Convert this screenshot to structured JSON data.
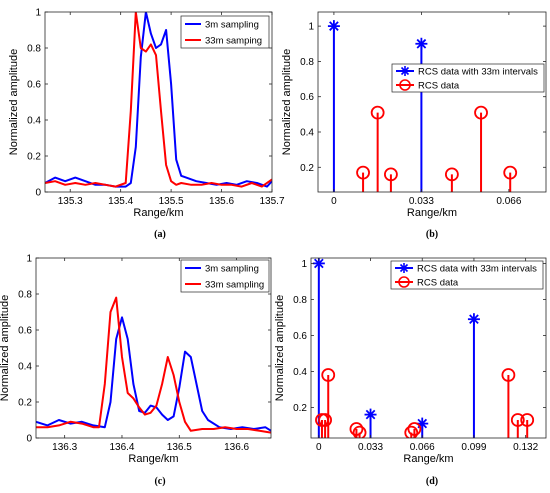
{
  "chart_data": [
    {
      "id": "a",
      "type": "line",
      "caption": "(a)",
      "xlabel": "Range/km",
      "ylabel": "Normalized amplitude",
      "xlim": [
        135.25,
        135.7
      ],
      "ylim": [
        0,
        1
      ],
      "xticks": [
        135.3,
        135.4,
        135.5,
        135.6,
        135.7
      ],
      "xtick_labels": [
        "135.3",
        "135.4",
        "135.5",
        "135.6",
        "135.7"
      ],
      "yticks": [
        0,
        0.2,
        0.4,
        0.6,
        0.8,
        1
      ],
      "ytick_labels": [
        "0",
        "0.2",
        "0.4",
        "0.6",
        "0.8",
        "1"
      ],
      "legend_position": "top-right",
      "series": [
        {
          "name": "3m sampling",
          "color": "#0000ff",
          "x": [
            135.25,
            135.27,
            135.29,
            135.31,
            135.33,
            135.35,
            135.37,
            135.39,
            135.41,
            135.42,
            135.43,
            135.44,
            135.45,
            135.46,
            135.47,
            135.48,
            135.49,
            135.5,
            135.51,
            135.52,
            135.53,
            135.55,
            135.57,
            135.59,
            135.61,
            135.63,
            135.65,
            135.67,
            135.69,
            135.7
          ],
          "y": [
            0.05,
            0.08,
            0.06,
            0.08,
            0.06,
            0.04,
            0.04,
            0.03,
            0.03,
            0.05,
            0.25,
            0.75,
            1.0,
            0.88,
            0.8,
            0.82,
            0.9,
            0.6,
            0.18,
            0.09,
            0.08,
            0.06,
            0.05,
            0.04,
            0.05,
            0.04,
            0.06,
            0.05,
            0.03,
            0.06
          ]
        },
        {
          "name": "33m samping",
          "color": "#ff0000",
          "x": [
            135.25,
            135.27,
            135.29,
            135.31,
            135.33,
            135.35,
            135.37,
            135.39,
            135.41,
            135.42,
            135.43,
            135.44,
            135.45,
            135.46,
            135.47,
            135.48,
            135.49,
            135.5,
            135.51,
            135.52,
            135.54,
            135.56,
            135.58,
            135.6,
            135.62,
            135.64,
            135.66,
            135.68,
            135.7
          ],
          "y": [
            0.05,
            0.06,
            0.04,
            0.05,
            0.04,
            0.05,
            0.04,
            0.03,
            0.05,
            0.45,
            1.0,
            0.8,
            0.78,
            0.82,
            0.76,
            0.45,
            0.15,
            0.06,
            0.04,
            0.05,
            0.04,
            0.04,
            0.05,
            0.04,
            0.04,
            0.03,
            0.05,
            0.03,
            0.07
          ]
        }
      ]
    },
    {
      "id": "b",
      "type": "stem",
      "caption": "(b)",
      "xlabel": "Range/km",
      "ylabel": "Normalized amplitude",
      "xlim": [
        -0.006,
        0.08
      ],
      "ylim": [
        0.06,
        1.08
      ],
      "xticks": [
        0,
        0.033,
        0.066
      ],
      "xtick_labels": [
        "0",
        "0.033",
        "0.066"
      ],
      "yticks": [
        0.2,
        0.4,
        0.6,
        0.8,
        1
      ],
      "ytick_labels": [
        "0.2",
        "0.4",
        "0.6",
        "0.8",
        "1"
      ],
      "legend_position": "upper-right",
      "series": [
        {
          "name": "RCS data  with 33m intervals",
          "color": "#0000ff",
          "marker": "asterisk",
          "x": [
            0,
            0.033
          ],
          "y": [
            1.0,
            0.9
          ]
        },
        {
          "name": "RCS data",
          "color": "#ff0000",
          "marker": "circle",
          "x": [
            0.011,
            0.0165,
            0.0215,
            0.0445,
            0.0555,
            0.0665
          ],
          "y": [
            0.17,
            0.51,
            0.16,
            0.16,
            0.51,
            0.17
          ]
        }
      ]
    },
    {
      "id": "c",
      "type": "line",
      "caption": "(c)",
      "xlabel": "Range/km",
      "ylabel": "Normalized amplitude",
      "xlim": [
        136.25,
        136.66
      ],
      "ylim": [
        0,
        1
      ],
      "xticks": [
        136.3,
        136.4,
        136.5,
        136.6
      ],
      "xtick_labels": [
        "136.3",
        "136.4",
        "136.5",
        "136.6"
      ],
      "yticks": [
        0,
        0.2,
        0.4,
        0.6,
        0.8,
        1
      ],
      "ytick_labels": [
        "0",
        "0.2",
        "0.4",
        "0.6",
        "0.8",
        "1"
      ],
      "legend_position": "top-right",
      "series": [
        {
          "name": "3m sampling",
          "color": "#0000ff",
          "x": [
            136.25,
            136.27,
            136.29,
            136.31,
            136.33,
            136.35,
            136.37,
            136.38,
            136.39,
            136.4,
            136.41,
            136.42,
            136.43,
            136.44,
            136.45,
            136.46,
            136.47,
            136.48,
            136.49,
            136.5,
            136.51,
            136.52,
            136.53,
            136.54,
            136.55,
            136.57,
            136.59,
            136.61,
            136.63,
            136.65,
            136.66
          ],
          "y": [
            0.09,
            0.07,
            0.1,
            0.08,
            0.09,
            0.07,
            0.06,
            0.2,
            0.55,
            0.67,
            0.55,
            0.3,
            0.15,
            0.14,
            0.18,
            0.17,
            0.13,
            0.1,
            0.12,
            0.28,
            0.48,
            0.45,
            0.3,
            0.15,
            0.1,
            0.06,
            0.05,
            0.06,
            0.05,
            0.06,
            0.04
          ]
        },
        {
          "name": "33m sampling",
          "color": "#ff0000",
          "x": [
            136.25,
            136.27,
            136.29,
            136.31,
            136.33,
            136.35,
            136.36,
            136.37,
            136.38,
            136.39,
            136.4,
            136.41,
            136.42,
            136.43,
            136.44,
            136.45,
            136.46,
            136.47,
            136.48,
            136.49,
            136.5,
            136.51,
            136.52,
            136.54,
            136.56,
            136.58,
            136.6,
            136.62,
            136.64,
            136.66
          ],
          "y": [
            0.06,
            0.06,
            0.07,
            0.09,
            0.08,
            0.06,
            0.06,
            0.3,
            0.7,
            0.78,
            0.45,
            0.25,
            0.22,
            0.17,
            0.13,
            0.14,
            0.18,
            0.3,
            0.45,
            0.35,
            0.2,
            0.09,
            0.04,
            0.05,
            0.05,
            0.06,
            0.05,
            0.05,
            0.04,
            0.03
          ]
        }
      ]
    },
    {
      "id": "d",
      "type": "stem",
      "caption": "(d)",
      "xlabel": "Range/km",
      "ylabel": "Normalized amplitude",
      "xlim": [
        -0.005,
        0.145
      ],
      "ylim": [
        0.03,
        1.03
      ],
      "xticks": [
        0,
        0.033,
        0.066,
        0.099,
        0.132
      ],
      "xtick_labels": [
        "0",
        "0.033",
        "0.066",
        "0.099",
        "0.132"
      ],
      "yticks": [
        0.2,
        0.4,
        0.6,
        0.8,
        1
      ],
      "ytick_labels": [
        "0.2",
        "0.4",
        "0.6",
        "0.8",
        "1"
      ],
      "legend_position": "top-right",
      "series": [
        {
          "name": "RCS data  with 33m intervals",
          "color": "#0000ff",
          "marker": "asterisk",
          "x": [
            0,
            0.033,
            0.066,
            0.099
          ],
          "y": [
            1.0,
            0.16,
            0.11,
            0.69
          ]
        },
        {
          "name": "RCS data",
          "color": "#ff0000",
          "marker": "circle",
          "x": [
            0.002,
            0.004,
            0.006,
            0.024,
            0.026,
            0.059,
            0.061,
            0.121,
            0.127,
            0.133
          ],
          "y": [
            0.13,
            0.13,
            0.38,
            0.08,
            0.06,
            0.06,
            0.08,
            0.38,
            0.13,
            0.13
          ]
        }
      ]
    }
  ]
}
